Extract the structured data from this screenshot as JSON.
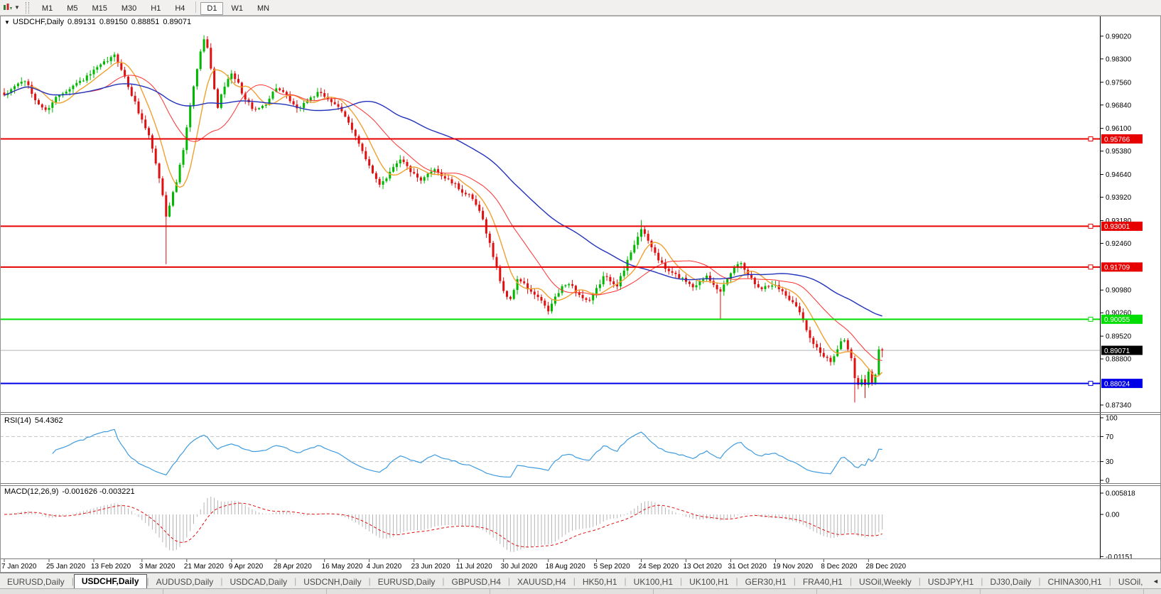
{
  "toolbar": {
    "groups": [
      [
        "M1",
        "M5",
        "M15",
        "M30",
        "H1",
        "H4"
      ],
      [
        "D1",
        "W1",
        "MN"
      ]
    ],
    "active": "D1",
    "chart_type_icon": "candlestick-chart",
    "dropdown_caret": "▼"
  },
  "chart": {
    "title": {
      "caret": "▼",
      "symbol": "USDCHF,Daily",
      "open": "0.89131",
      "high": "0.89150",
      "low": "0.88851",
      "close": "0.89071"
    },
    "price_axis": {
      "ticks": [
        "0.99020",
        "0.98300",
        "0.97560",
        "0.96840",
        "0.96100",
        "0.95380",
        "0.94640",
        "0.93920",
        "0.93180",
        "0.92460",
        "0.90980",
        "0.90260",
        "0.89520",
        "0.88800",
        "0.87340"
      ]
    },
    "levels": [
      {
        "value": 0.95766,
        "label": "0.95766",
        "color": "#e60000"
      },
      {
        "value": 0.93001,
        "label": "0.93001",
        "color": "#e60000"
      },
      {
        "value": 0.91709,
        "label": "0.91709",
        "color": "#e60000"
      },
      {
        "value": 0.90055,
        "label": "0.90055",
        "color": "#00dd00"
      },
      {
        "value": 0.88024,
        "label": "0.88024",
        "color": "#0000e6"
      }
    ],
    "current_price": {
      "value": 0.89071,
      "label": "0.89071",
      "tag_color": "#000000",
      "line_color": "#b4b4b4"
    },
    "date_axis": {
      "labels": [
        {
          "text": "7 Jan 2020",
          "bar": 0
        },
        {
          "text": "25 Jan 2020",
          "bar": 13
        },
        {
          "text": "13 Feb 2020",
          "bar": 26
        },
        {
          "text": "3 Mar 2020",
          "bar": 40
        },
        {
          "text": "21 Mar 2020",
          "bar": 53
        },
        {
          "text": "9 Apr 2020",
          "bar": 66
        },
        {
          "text": "28 Apr 2020",
          "bar": 79
        },
        {
          "text": "16 May 2020",
          "bar": 93
        },
        {
          "text": "4 Jun 2020",
          "bar": 106
        },
        {
          "text": "23 Jun 2020",
          "bar": 119
        },
        {
          "text": "11 Jul 2020",
          "bar": 132
        },
        {
          "text": "30 Jul 2020",
          "bar": 145
        },
        {
          "text": "18 Aug 2020",
          "bar": 158
        },
        {
          "text": "5 Sep 2020",
          "bar": 172
        },
        {
          "text": "24 Sep 2020",
          "bar": 185
        },
        {
          "text": "13 Oct 2020",
          "bar": 198
        },
        {
          "text": "31 Oct 2020",
          "bar": 211
        },
        {
          "text": "19 Nov 2020",
          "bar": 224
        },
        {
          "text": "8 Dec 2020",
          "bar": 238
        },
        {
          "text": "28 Dec 2020",
          "bar": 251
        }
      ]
    },
    "candles": {
      "count": 256,
      "up_color": "#00b800",
      "down_color": "#e01010",
      "waypoints": [
        [
          0,
          0.971
        ],
        [
          3,
          0.9745
        ],
        [
          6,
          0.9762
        ],
        [
          9,
          0.97
        ],
        [
          12,
          0.9665
        ],
        [
          15,
          0.9708
        ],
        [
          18,
          0.9732
        ],
        [
          21,
          0.9752
        ],
        [
          24,
          0.9772
        ],
        [
          27,
          0.98
        ],
        [
          30,
          0.9825
        ],
        [
          32,
          0.984
        ],
        [
          34,
          0.98
        ],
        [
          36,
          0.9742
        ],
        [
          38,
          0.969
        ],
        [
          40,
          0.9635
        ],
        [
          42,
          0.959
        ],
        [
          44,
          0.95
        ],
        [
          46,
          0.94
        ],
        [
          47,
          0.9335
        ],
        [
          48,
          0.937
        ],
        [
          50,
          0.944
        ],
        [
          52,
          0.954
        ],
        [
          54,
          0.968
        ],
        [
          56,
          0.98
        ],
        [
          58,
          0.9898
        ],
        [
          59,
          0.987
        ],
        [
          60,
          0.98
        ],
        [
          61,
          0.973
        ],
        [
          62,
          0.968
        ],
        [
          64,
          0.9745
        ],
        [
          66,
          0.978
        ],
        [
          68,
          0.975
        ],
        [
          70,
          0.97
        ],
        [
          73,
          0.9665
        ],
        [
          76,
          0.969
        ],
        [
          79,
          0.974
        ],
        [
          82,
          0.971
        ],
        [
          85,
          0.9668
        ],
        [
          88,
          0.97
        ],
        [
          91,
          0.972
        ],
        [
          93,
          0.9712
        ],
        [
          96,
          0.9688
        ],
        [
          99,
          0.9645
        ],
        [
          102,
          0.959
        ],
        [
          105,
          0.951
        ],
        [
          107,
          0.9465
        ],
        [
          109,
          0.9435
        ],
        [
          111,
          0.9455
        ],
        [
          113,
          0.949
        ],
        [
          115,
          0.9515
        ],
        [
          117,
          0.9488
        ],
        [
          119,
          0.9462
        ],
        [
          121,
          0.944
        ],
        [
          123,
          0.9465
        ],
        [
          125,
          0.9485
        ],
        [
          127,
          0.946
        ],
        [
          129,
          0.9445
        ],
        [
          131,
          0.943
        ],
        [
          133,
          0.941
        ],
        [
          135,
          0.9395
        ],
        [
          137,
          0.9368
        ],
        [
          139,
          0.932
        ],
        [
          141,
          0.9245
        ],
        [
          143,
          0.9165
        ],
        [
          145,
          0.9095
        ],
        [
          147,
          0.9065
        ],
        [
          149,
          0.9135
        ],
        [
          151,
          0.9115
        ],
        [
          153,
          0.909
        ],
        [
          155,
          0.9075
        ],
        [
          157,
          0.9045
        ],
        [
          158,
          0.9032
        ],
        [
          160,
          0.9075
        ],
        [
          162,
          0.9105
        ],
        [
          164,
          0.9122
        ],
        [
          166,
          0.9095
        ],
        [
          168,
          0.9072
        ],
        [
          170,
          0.906
        ],
        [
          172,
          0.91
        ],
        [
          174,
          0.914
        ],
        [
          176,
          0.913
        ],
        [
          178,
          0.9115
        ],
        [
          180,
          0.916
        ],
        [
          182,
          0.922
        ],
        [
          184,
          0.927
        ],
        [
          185,
          0.929
        ],
        [
          186,
          0.927
        ],
        [
          188,
          0.9235
        ],
        [
          190,
          0.9195
        ],
        [
          192,
          0.9165
        ],
        [
          194,
          0.915
        ],
        [
          196,
          0.914
        ],
        [
          198,
          0.9128
        ],
        [
          200,
          0.911
        ],
        [
          202,
          0.9125
        ],
        [
          204,
          0.9145
        ],
        [
          206,
          0.912
        ],
        [
          208,
          0.909
        ],
        [
          210,
          0.913
        ],
        [
          212,
          0.917
        ],
        [
          214,
          0.9185
        ],
        [
          216,
          0.915
        ],
        [
          218,
          0.912
        ],
        [
          220,
          0.9105
        ],
        [
          222,
          0.911
        ],
        [
          224,
          0.9115
        ],
        [
          226,
          0.9092
        ],
        [
          228,
          0.907
        ],
        [
          230,
          0.9052
        ],
        [
          232,
          0.9
        ],
        [
          234,
          0.895
        ],
        [
          236,
          0.8915
        ],
        [
          238,
          0.8888
        ],
        [
          240,
          0.887
        ],
        [
          242,
          0.8905
        ],
        [
          243,
          0.8935
        ],
        [
          244,
          0.8945
        ],
        [
          245,
          0.8915
        ],
        [
          246,
          0.888
        ],
        [
          247,
          0.882
        ],
        [
          248,
          0.8795
        ],
        [
          249,
          0.8812
        ],
        [
          250,
          0.8796
        ],
        [
          251,
          0.8842
        ],
        [
          252,
          0.8802
        ],
        [
          253,
          0.8832
        ],
        [
          254,
          0.8913
        ],
        [
          255,
          0.89071
        ]
      ],
      "wick_lows": [
        [
          47,
          0.918
        ],
        [
          208,
          0.9006
        ],
        [
          247,
          0.8742
        ],
        [
          250,
          0.8756
        ],
        [
          255,
          0.8885
        ]
      ],
      "wick_highs": [
        [
          58,
          0.9905
        ],
        [
          185,
          0.932
        ],
        [
          255,
          0.8915
        ]
      ]
    },
    "moving_averages": [
      {
        "period": 8,
        "color": "#f0a030",
        "width": 1.4
      },
      {
        "period": 21,
        "color": "#ff3030",
        "width": 1.0
      },
      {
        "period": 55,
        "color": "#2233bb",
        "width": 1.4
      }
    ]
  },
  "rsi": {
    "label": "RSI(14)",
    "value": "54.4362",
    "period": 14,
    "color": "#3e9bdf",
    "levels": [
      70,
      30
    ],
    "axis": [
      {
        "label": "100",
        "value": 100
      },
      {
        "label": "70",
        "value": 70
      },
      {
        "label": "30",
        "value": 30
      },
      {
        "label": "0",
        "value": 0
      }
    ]
  },
  "macd": {
    "label": "MACD(12,26,9)",
    "values": "-0.001626 -0.003221",
    "fast": 12,
    "slow": 26,
    "signal": 9,
    "histogram_color": "#b4b4b4",
    "signal_color": "#e01010",
    "axis": [
      {
        "label": "0.005818",
        "value": 0.005818
      },
      {
        "label": "0.00",
        "value": 0
      },
      {
        "label": "-0.01151",
        "value": -0.01151
      }
    ]
  },
  "tabs": {
    "items": [
      {
        "label": "EURUSD,Daily",
        "active": false
      },
      {
        "label": "USDCHF,Daily",
        "active": true
      },
      {
        "label": "AUDUSD,Daily",
        "active": false
      },
      {
        "label": "USDCAD,Daily",
        "active": false
      },
      {
        "label": "USDCNH,Daily",
        "active": false
      },
      {
        "label": "EURUSD,Daily",
        "active": false
      },
      {
        "label": "GBPUSD,H4",
        "active": false
      },
      {
        "label": "XAUUSD,H4",
        "active": false
      },
      {
        "label": "HK50,H1",
        "active": false
      },
      {
        "label": "UK100,H1",
        "active": false
      },
      {
        "label": "UK100,H1",
        "active": false
      },
      {
        "label": "GER30,H1",
        "active": false
      },
      {
        "label": "FRA40,H1",
        "active": false
      },
      {
        "label": "USOil,Weekly",
        "active": false
      },
      {
        "label": "USDJPY,H1",
        "active": false
      },
      {
        "label": "DJ30,Daily",
        "active": false
      },
      {
        "label": "CHINA300,H1",
        "active": false
      },
      {
        "label": "USOil,",
        "active": false
      }
    ],
    "scroll_left": "◄",
    "scroll_right": "►"
  }
}
